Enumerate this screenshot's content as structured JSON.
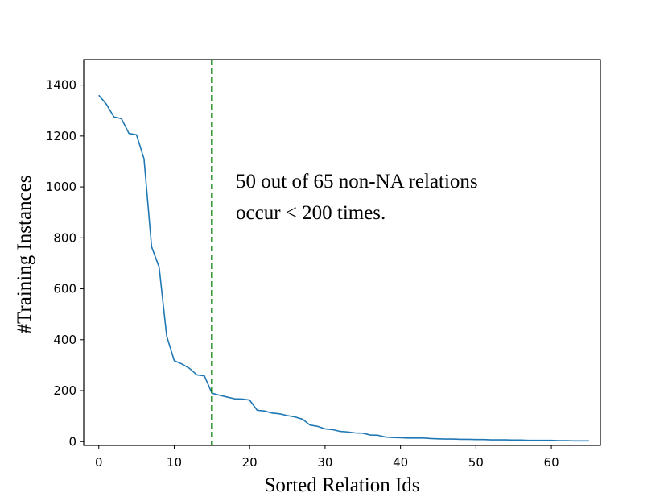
{
  "chart_data": {
    "type": "line",
    "title": "",
    "xlabel": "Sorted Relation Ids",
    "ylabel": "#Training Instances",
    "xlim": [
      -2,
      66.5
    ],
    "ylim": [
      -15,
      1500
    ],
    "xticks": [
      0,
      10,
      20,
      30,
      40,
      50,
      60
    ],
    "yticks": [
      0,
      200,
      400,
      600,
      800,
      1000,
      1200,
      1400
    ],
    "grid": false,
    "series": [
      {
        "color": "#1f77b4",
        "x": [
          0,
          1,
          2,
          3,
          4,
          5,
          6,
          7,
          8,
          9,
          10,
          11,
          12,
          13,
          14,
          15,
          16,
          17,
          18,
          19,
          20,
          21,
          22,
          23,
          24,
          25,
          26,
          27,
          28,
          29,
          30,
          31,
          32,
          33,
          34,
          35,
          36,
          37,
          38,
          39,
          40,
          41,
          42,
          43,
          44,
          45,
          46,
          47,
          48,
          49,
          50,
          51,
          52,
          53,
          54,
          55,
          56,
          57,
          58,
          59,
          60,
          61,
          62,
          63,
          64,
          65
        ],
        "y": [
          1360,
          1325,
          1275,
          1268,
          1210,
          1205,
          1110,
          765,
          685,
          415,
          318,
          305,
          288,
          262,
          258,
          190,
          182,
          175,
          168,
          167,
          163,
          123,
          120,
          112,
          109,
          102,
          97,
          88,
          65,
          60,
          50,
          47,
          40,
          38,
          34,
          33,
          26,
          25,
          18,
          16,
          15,
          14,
          14,
          14,
          12,
          11,
          10,
          10,
          9,
          9,
          8,
          8,
          7,
          7,
          7,
          6,
          6,
          5,
          5,
          5,
          5,
          4,
          4,
          3,
          3,
          3
        ]
      }
    ],
    "reference_line": {
      "x": 15,
      "style": "dashed",
      "color": "#007a00"
    },
    "annotation": {
      "lines": [
        "50 out of 65 non-NA relations",
        "occur < 200 times."
      ]
    }
  }
}
